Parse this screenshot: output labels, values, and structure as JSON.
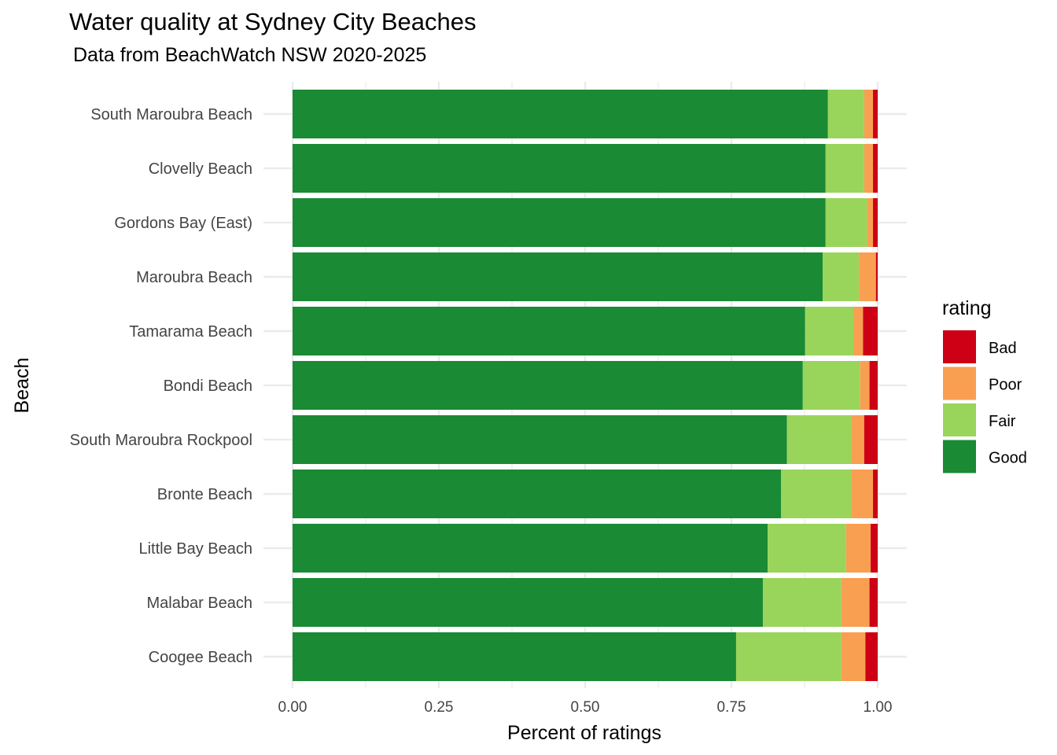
{
  "chart_data": {
    "type": "bar",
    "orientation": "horizontal",
    "stacked": true,
    "title": "Water quality at Sydney City Beaches",
    "subtitle": "Data from BeachWatch NSW 2020-2025",
    "xlabel": "Percent of ratings",
    "ylabel": "Beach",
    "xlim": [
      0,
      1
    ],
    "xticks": [
      "0.00",
      "0.25",
      "0.50",
      "0.75",
      "1.00"
    ],
    "grid": true,
    "legend_title": "rating",
    "legend_position": "right",
    "categories": [
      "South Maroubra Beach",
      "Clovelly Beach",
      "Gordons Bay (East)",
      "Maroubra Beach",
      "Tamarama Beach",
      "Bondi Beach",
      "South Maroubra Rockpool",
      "Bronte Beach",
      "Little Bay Beach",
      "Malabar Beach",
      "Coogee Beach"
    ],
    "series": [
      {
        "name": "Good",
        "color": "#1a8a34",
        "values": [
          0.915,
          0.911,
          0.911,
          0.906,
          0.876,
          0.872,
          0.845,
          0.835,
          0.812,
          0.804,
          0.758
        ]
      },
      {
        "name": "Fair",
        "color": "#99d55b",
        "values": [
          0.062,
          0.066,
          0.071,
          0.062,
          0.083,
          0.098,
          0.11,
          0.12,
          0.134,
          0.134,
          0.18
        ]
      },
      {
        "name": "Poor",
        "color": "#f99f51",
        "values": [
          0.015,
          0.015,
          0.01,
          0.029,
          0.016,
          0.016,
          0.022,
          0.037,
          0.042,
          0.048,
          0.041
        ]
      },
      {
        "name": "Bad",
        "color": "#cd0016",
        "values": [
          0.008,
          0.008,
          0.008,
          0.003,
          0.025,
          0.014,
          0.023,
          0.008,
          0.012,
          0.014,
          0.021
        ]
      }
    ],
    "legend_order": [
      "Bad",
      "Poor",
      "Fair",
      "Good"
    ]
  }
}
